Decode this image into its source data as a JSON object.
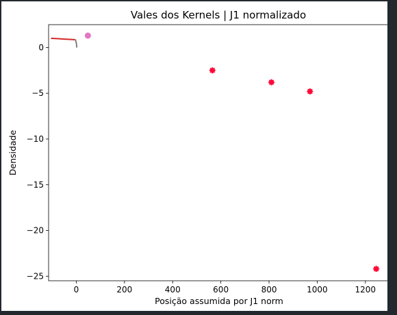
{
  "chart_data": {
    "type": "scatter",
    "title": "Vales dos Kernels | J1 normalizado",
    "xlabel": "Posição assumida por J1 norm",
    "ylabel": "Densidade",
    "xlim": [
      -115,
      1300
    ],
    "ylim": [
      -25.5,
      2.5
    ],
    "xticks": [
      0,
      200,
      400,
      600,
      800,
      1000,
      1200
    ],
    "yticks": [
      0,
      -5,
      -10,
      -15,
      -20,
      -25
    ],
    "grid": false,
    "series": [
      {
        "kind": "line",
        "color": "#d62728",
        "x": [
          -105,
          -80,
          -50,
          -20,
          -5
        ],
        "y": [
          1.0,
          0.97,
          0.92,
          0.88,
          0.85
        ]
      },
      {
        "kind": "line",
        "color": "#7f7f7f",
        "x": [
          -4,
          -2,
          0,
          1,
          2
        ],
        "y": [
          0.9,
          0.7,
          0.5,
          0.3,
          0.0
        ]
      },
      {
        "kind": "point",
        "color": "#e377c2",
        "x": [
          48
        ],
        "y": [
          1.3
        ]
      },
      {
        "kind": "star",
        "color": "#ff0a3a",
        "x": [
          565,
          810,
          970,
          1245
        ],
        "y": [
          -2.5,
          -3.8,
          -4.8,
          -24.2
        ]
      }
    ]
  }
}
